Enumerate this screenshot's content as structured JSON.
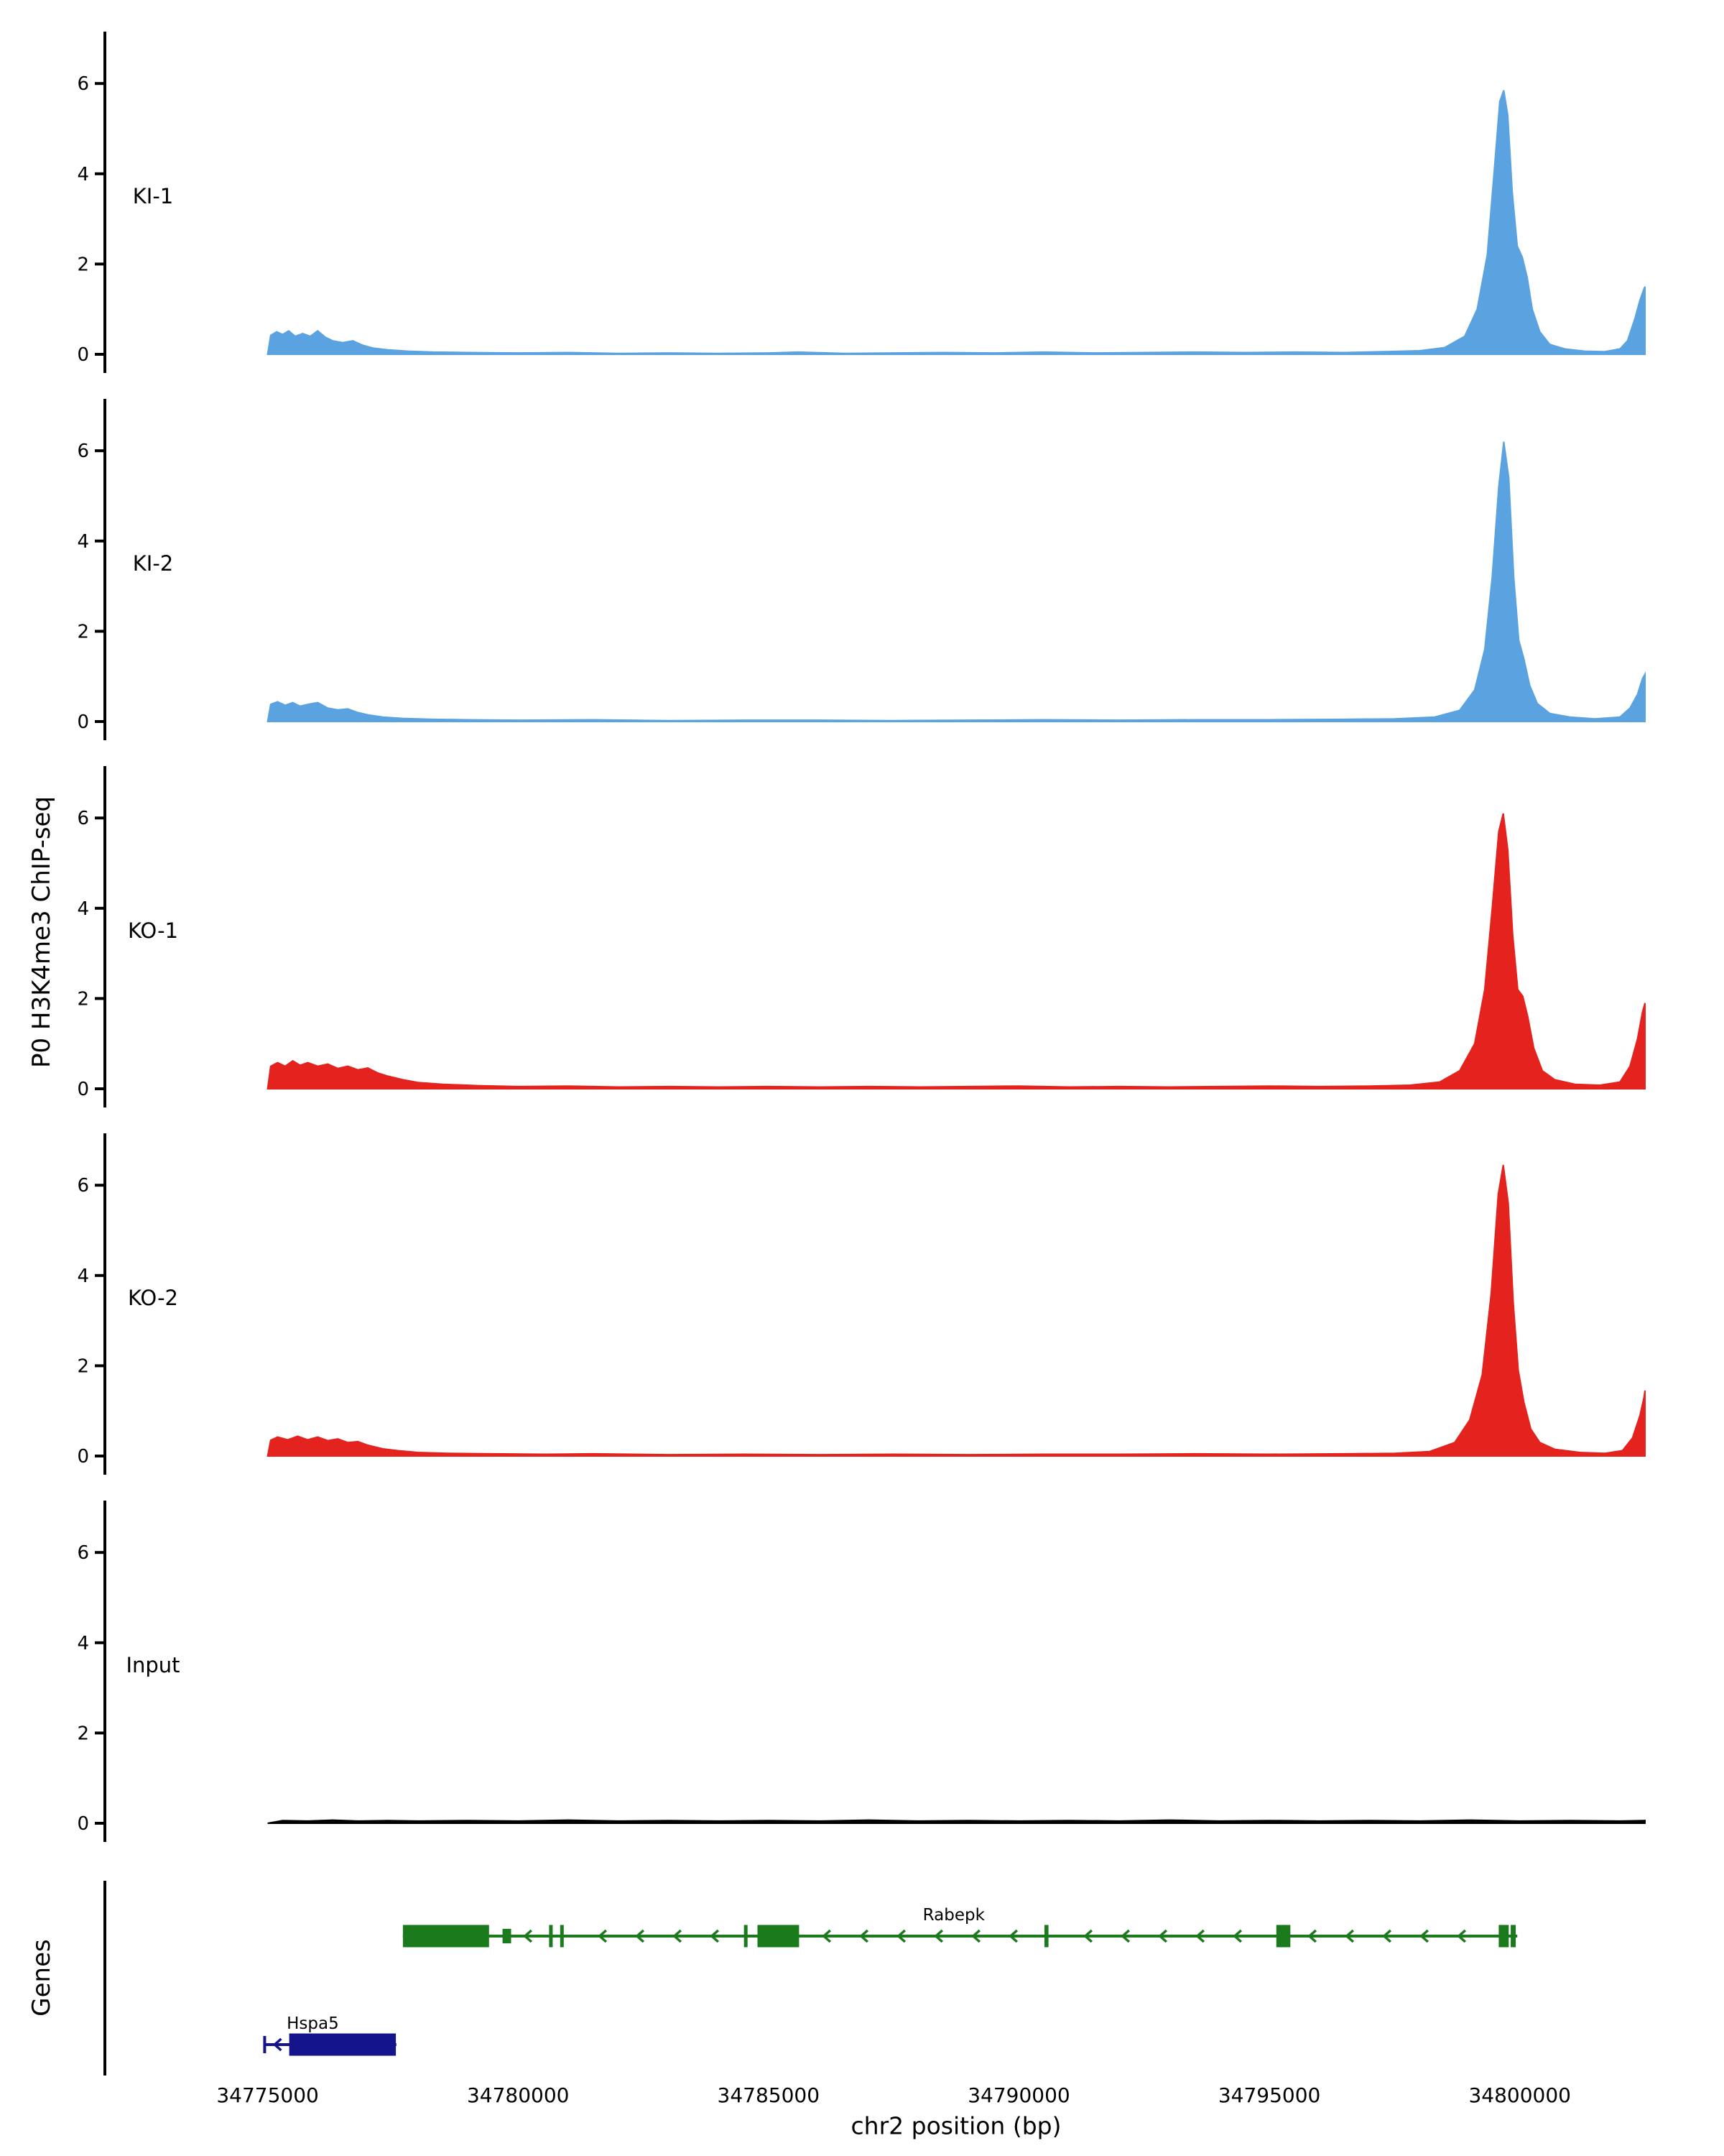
{
  "chart_data": {
    "type": "area",
    "title": "",
    "xlabel": "chr2 position (bp)",
    "ylabel": "P0 H3K4me3 ChIP-seq",
    "xlim": [
      34771750,
      34802500
    ],
    "x_ticks": [
      34775000,
      34780000,
      34785000,
      34790000,
      34795000,
      34800000
    ],
    "ylim": [
      0,
      7
    ],
    "y_ticks": [
      0,
      2,
      4,
      6
    ],
    "grid": false,
    "tracks": [
      {
        "name": "KI-1",
        "color": "#5BA3E0",
        "points": [
          [
            34775000,
            0
          ],
          [
            34775060,
            0.42
          ],
          [
            34775180,
            0.5
          ],
          [
            34775300,
            0.44
          ],
          [
            34775420,
            0.52
          ],
          [
            34775550,
            0.4
          ],
          [
            34775700,
            0.46
          ],
          [
            34775850,
            0.4
          ],
          [
            34776000,
            0.52
          ],
          [
            34776150,
            0.38
          ],
          [
            34776300,
            0.3
          ],
          [
            34776500,
            0.26
          ],
          [
            34776700,
            0.3
          ],
          [
            34776900,
            0.2
          ],
          [
            34777100,
            0.14
          ],
          [
            34777400,
            0.1
          ],
          [
            34777800,
            0.07
          ],
          [
            34778300,
            0.05
          ],
          [
            34779000,
            0.04
          ],
          [
            34780000,
            0.03
          ],
          [
            34781000,
            0.04
          ],
          [
            34782000,
            0.02
          ],
          [
            34783000,
            0.03
          ],
          [
            34784000,
            0.02
          ],
          [
            34785000,
            0.03
          ],
          [
            34785600,
            0.05
          ],
          [
            34786500,
            0.02
          ],
          [
            34787500,
            0.03
          ],
          [
            34788500,
            0.04
          ],
          [
            34789500,
            0.03
          ],
          [
            34790500,
            0.05
          ],
          [
            34791500,
            0.03
          ],
          [
            34792500,
            0.04
          ],
          [
            34793500,
            0.05
          ],
          [
            34794500,
            0.04
          ],
          [
            34795500,
            0.05
          ],
          [
            34796500,
            0.04
          ],
          [
            34797300,
            0.06
          ],
          [
            34798000,
            0.08
          ],
          [
            34798500,
            0.15
          ],
          [
            34798900,
            0.4
          ],
          [
            34799150,
            1.0
          ],
          [
            34799350,
            2.2
          ],
          [
            34799500,
            4.2
          ],
          [
            34799600,
            5.6
          ],
          [
            34799680,
            5.85
          ],
          [
            34799760,
            5.3
          ],
          [
            34799850,
            3.6
          ],
          [
            34799950,
            2.4
          ],
          [
            34800050,
            2.15
          ],
          [
            34800150,
            1.7
          ],
          [
            34800250,
            1.0
          ],
          [
            34800400,
            0.5
          ],
          [
            34800600,
            0.22
          ],
          [
            34800900,
            0.12
          ],
          [
            34801300,
            0.07
          ],
          [
            34801700,
            0.06
          ],
          [
            34802000,
            0.12
          ],
          [
            34802150,
            0.3
          ],
          [
            34802300,
            0.8
          ],
          [
            34802400,
            1.2
          ],
          [
            34802480,
            1.45
          ],
          [
            34802500,
            1.5
          ]
        ]
      },
      {
        "name": "KI-2",
        "color": "#5BA3E0",
        "points": [
          [
            34775000,
            0
          ],
          [
            34775060,
            0.38
          ],
          [
            34775200,
            0.44
          ],
          [
            34775350,
            0.36
          ],
          [
            34775500,
            0.42
          ],
          [
            34775650,
            0.34
          ],
          [
            34775800,
            0.38
          ],
          [
            34776000,
            0.42
          ],
          [
            34776200,
            0.3
          ],
          [
            34776400,
            0.26
          ],
          [
            34776600,
            0.28
          ],
          [
            34776800,
            0.2
          ],
          [
            34777000,
            0.15
          ],
          [
            34777300,
            0.1
          ],
          [
            34777700,
            0.07
          ],
          [
            34778300,
            0.05
          ],
          [
            34779000,
            0.04
          ],
          [
            34780000,
            0.03
          ],
          [
            34781500,
            0.04
          ],
          [
            34783000,
            0.02
          ],
          [
            34784500,
            0.03
          ],
          [
            34786000,
            0.03
          ],
          [
            34787500,
            0.02
          ],
          [
            34789000,
            0.03
          ],
          [
            34790500,
            0.04
          ],
          [
            34792000,
            0.03
          ],
          [
            34793500,
            0.04
          ],
          [
            34795000,
            0.04
          ],
          [
            34796500,
            0.05
          ],
          [
            34797500,
            0.06
          ],
          [
            34798300,
            0.1
          ],
          [
            34798800,
            0.25
          ],
          [
            34799100,
            0.7
          ],
          [
            34799300,
            1.6
          ],
          [
            34799450,
            3.2
          ],
          [
            34799580,
            5.2
          ],
          [
            34799680,
            6.2
          ],
          [
            34799780,
            5.4
          ],
          [
            34799880,
            3.2
          ],
          [
            34799980,
            1.8
          ],
          [
            34800080,
            1.4
          ],
          [
            34800200,
            0.8
          ],
          [
            34800350,
            0.4
          ],
          [
            34800600,
            0.18
          ],
          [
            34801000,
            0.1
          ],
          [
            34801500,
            0.06
          ],
          [
            34802000,
            0.1
          ],
          [
            34802200,
            0.3
          ],
          [
            34802350,
            0.6
          ],
          [
            34802450,
            0.95
          ],
          [
            34802500,
            1.05
          ]
        ]
      },
      {
        "name": "KO-1",
        "color": "#E4221E",
        "points": [
          [
            34775000,
            0
          ],
          [
            34775060,
            0.5
          ],
          [
            34775200,
            0.58
          ],
          [
            34775350,
            0.5
          ],
          [
            34775500,
            0.62
          ],
          [
            34775650,
            0.52
          ],
          [
            34775800,
            0.58
          ],
          [
            34776000,
            0.5
          ],
          [
            34776200,
            0.55
          ],
          [
            34776400,
            0.45
          ],
          [
            34776600,
            0.5
          ],
          [
            34776800,
            0.42
          ],
          [
            34777000,
            0.46
          ],
          [
            34777200,
            0.35
          ],
          [
            34777400,
            0.28
          ],
          [
            34777700,
            0.2
          ],
          [
            34778000,
            0.14
          ],
          [
            34778500,
            0.1
          ],
          [
            34779200,
            0.07
          ],
          [
            34780000,
            0.05
          ],
          [
            34781000,
            0.06
          ],
          [
            34782000,
            0.04
          ],
          [
            34783000,
            0.05
          ],
          [
            34784000,
            0.04
          ],
          [
            34785000,
            0.05
          ],
          [
            34786000,
            0.04
          ],
          [
            34787000,
            0.05
          ],
          [
            34788000,
            0.04
          ],
          [
            34789000,
            0.05
          ],
          [
            34790000,
            0.06
          ],
          [
            34791000,
            0.04
          ],
          [
            34792000,
            0.05
          ],
          [
            34793000,
            0.04
          ],
          [
            34794000,
            0.05
          ],
          [
            34795000,
            0.06
          ],
          [
            34796000,
            0.05
          ],
          [
            34797000,
            0.06
          ],
          [
            34797800,
            0.08
          ],
          [
            34798400,
            0.15
          ],
          [
            34798800,
            0.4
          ],
          [
            34799100,
            1.0
          ],
          [
            34799300,
            2.2
          ],
          [
            34799450,
            4.0
          ],
          [
            34799580,
            5.7
          ],
          [
            34799670,
            6.1
          ],
          [
            34799760,
            5.3
          ],
          [
            34799860,
            3.4
          ],
          [
            34799960,
            2.2
          ],
          [
            34800060,
            2.05
          ],
          [
            34800160,
            1.6
          ],
          [
            34800280,
            0.9
          ],
          [
            34800450,
            0.4
          ],
          [
            34800700,
            0.2
          ],
          [
            34801100,
            0.1
          ],
          [
            34801600,
            0.08
          ],
          [
            34802000,
            0.15
          ],
          [
            34802200,
            0.5
          ],
          [
            34802350,
            1.1
          ],
          [
            34802450,
            1.7
          ],
          [
            34802500,
            1.9
          ]
        ]
      },
      {
        "name": "KO-2",
        "color": "#E4221E",
        "points": [
          [
            34775000,
            0
          ],
          [
            34775060,
            0.35
          ],
          [
            34775200,
            0.42
          ],
          [
            34775400,
            0.36
          ],
          [
            34775600,
            0.44
          ],
          [
            34775800,
            0.36
          ],
          [
            34776000,
            0.42
          ],
          [
            34776200,
            0.34
          ],
          [
            34776400,
            0.38
          ],
          [
            34776600,
            0.3
          ],
          [
            34776800,
            0.32
          ],
          [
            34777000,
            0.24
          ],
          [
            34777300,
            0.16
          ],
          [
            34777600,
            0.12
          ],
          [
            34778000,
            0.08
          ],
          [
            34778600,
            0.06
          ],
          [
            34779500,
            0.05
          ],
          [
            34780500,
            0.04
          ],
          [
            34781500,
            0.05
          ],
          [
            34783000,
            0.03
          ],
          [
            34784500,
            0.04
          ],
          [
            34786000,
            0.03
          ],
          [
            34787500,
            0.04
          ],
          [
            34789000,
            0.03
          ],
          [
            34790500,
            0.04
          ],
          [
            34792000,
            0.04
          ],
          [
            34793500,
            0.05
          ],
          [
            34795000,
            0.04
          ],
          [
            34796500,
            0.05
          ],
          [
            34797500,
            0.06
          ],
          [
            34798200,
            0.1
          ],
          [
            34798700,
            0.3
          ],
          [
            34799000,
            0.8
          ],
          [
            34799250,
            1.8
          ],
          [
            34799430,
            3.6
          ],
          [
            34799570,
            5.8
          ],
          [
            34799670,
            6.45
          ],
          [
            34799770,
            5.6
          ],
          [
            34799870,
            3.4
          ],
          [
            34799970,
            1.9
          ],
          [
            34800080,
            1.2
          ],
          [
            34800220,
            0.6
          ],
          [
            34800400,
            0.3
          ],
          [
            34800700,
            0.15
          ],
          [
            34801200,
            0.08
          ],
          [
            34801700,
            0.06
          ],
          [
            34802050,
            0.12
          ],
          [
            34802250,
            0.4
          ],
          [
            34802400,
            0.9
          ],
          [
            34802480,
            1.3
          ],
          [
            34802500,
            1.45
          ]
        ]
      },
      {
        "name": "Input",
        "color": "#000000",
        "points": [
          [
            34775000,
            0
          ],
          [
            34775300,
            0.06
          ],
          [
            34775800,
            0.05
          ],
          [
            34776300,
            0.07
          ],
          [
            34776800,
            0.05
          ],
          [
            34777400,
            0.06
          ],
          [
            34778000,
            0.05
          ],
          [
            34779000,
            0.06
          ],
          [
            34780000,
            0.05
          ],
          [
            34781000,
            0.07
          ],
          [
            34782000,
            0.05
          ],
          [
            34783000,
            0.06
          ],
          [
            34784000,
            0.05
          ],
          [
            34785000,
            0.06
          ],
          [
            34786000,
            0.05
          ],
          [
            34787000,
            0.07
          ],
          [
            34788000,
            0.05
          ],
          [
            34789000,
            0.06
          ],
          [
            34790000,
            0.05
          ],
          [
            34791000,
            0.06
          ],
          [
            34792000,
            0.05
          ],
          [
            34793000,
            0.07
          ],
          [
            34794000,
            0.05
          ],
          [
            34795000,
            0.06
          ],
          [
            34796000,
            0.05
          ],
          [
            34797000,
            0.06
          ],
          [
            34798000,
            0.05
          ],
          [
            34799000,
            0.07
          ],
          [
            34800000,
            0.05
          ],
          [
            34801000,
            0.06
          ],
          [
            34802000,
            0.05
          ],
          [
            34802500,
            0.06
          ]
        ]
      }
    ],
    "genes_panel": {
      "label": "Genes",
      "genes": [
        {
          "name": "Rabepk",
          "color": "#1B7A1B",
          "strand": "left",
          "row": 0,
          "line": [
            34777700,
            34799950
          ],
          "label_bp": 34788700,
          "exons": [
            [
              34777700,
              34779420,
              1
            ],
            [
              34779690,
              34779860,
              0.65
            ],
            [
              34780620,
              34780690,
              1
            ],
            [
              34780840,
              34780910,
              1
            ],
            [
              34784510,
              34784580,
              1
            ],
            [
              34784780,
              34785610,
              1
            ],
            [
              34790510,
              34790590,
              1
            ],
            [
              34795140,
              34795420,
              1
            ],
            [
              34799580,
              34799780,
              1
            ],
            [
              34799820,
              34799920,
              1
            ]
          ],
          "start_bar": false
        },
        {
          "name": "Hspa5",
          "color": "#14148C",
          "strand": "left",
          "row": 1,
          "line": [
            34774940,
            34777570
          ],
          "label_bp": 34775900,
          "exons": [
            [
              34775430,
              34777560,
              1
            ]
          ],
          "start_bar": true
        }
      ]
    }
  }
}
